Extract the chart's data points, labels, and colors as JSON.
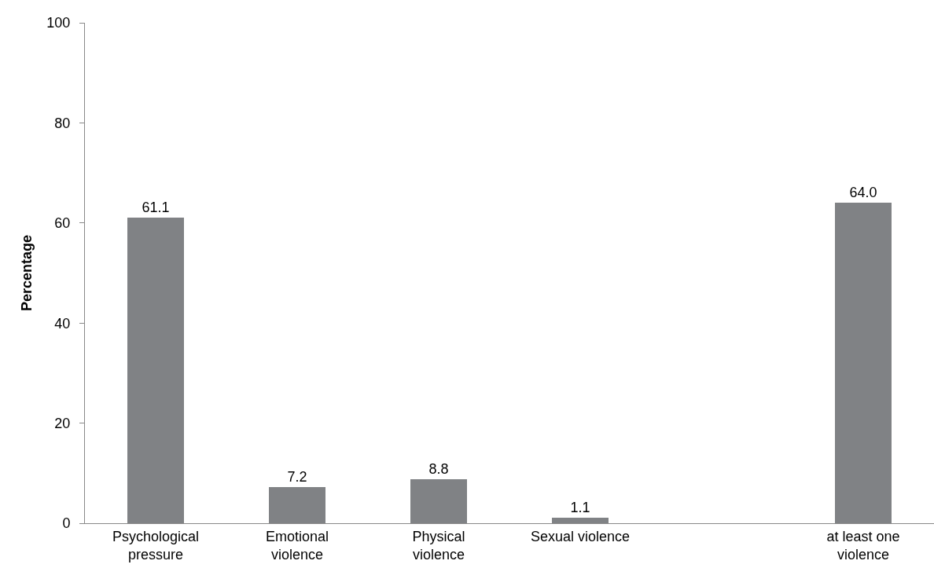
{
  "chart_data": {
    "type": "bar",
    "ylabel": "Percentage",
    "categories": [
      "Psychological\npressure",
      "Emotional\nviolence",
      "Physical\nviolence",
      "Sexual violence",
      null,
      "at least one\nviolence"
    ],
    "values": [
      61.1,
      7.2,
      8.8,
      1.1,
      null,
      64.0
    ],
    "value_labels": [
      "61.1",
      "7.2",
      "8.8",
      "1.1",
      null,
      "64.0"
    ],
    "color": "#808285",
    "ylim": [
      0,
      100
    ],
    "yticks": [
      0,
      20,
      40,
      60,
      80,
      100
    ],
    "grid": false,
    "legend": false
  }
}
